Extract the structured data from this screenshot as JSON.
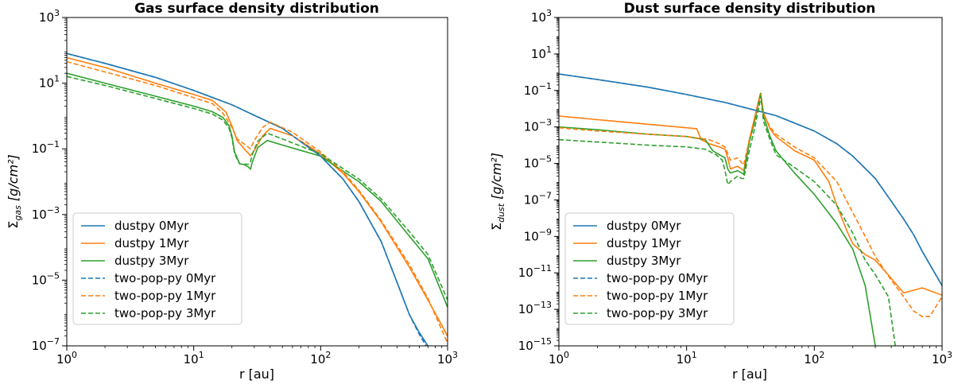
{
  "chart_data": [
    {
      "type": "line",
      "title": "Gas surface density distribution",
      "xlabel": "r [au]",
      "ylabel_main": "Σ",
      "ylabel_sub": "gas",
      "ylabel_unit": "[g/cm²]",
      "xscale": "log",
      "yscale": "log",
      "xlim": [
        1,
        1000
      ],
      "ylim": [
        1e-07,
        1000
      ],
      "xticks": [
        {
          "value": 1,
          "label": "10",
          "exp": "0"
        },
        {
          "value": 10,
          "label": "10",
          "exp": "1"
        },
        {
          "value": 100,
          "label": "10",
          "exp": "2"
        },
        {
          "value": 1000,
          "label": "10",
          "exp": "3"
        }
      ],
      "yticks": [
        {
          "value": 1e-07,
          "label": "10",
          "exp": "−7"
        },
        {
          "value": 1e-05,
          "label": "10",
          "exp": "−5"
        },
        {
          "value": 0.001,
          "label": "10",
          "exp": "−3"
        },
        {
          "value": 0.1,
          "label": "10",
          "exp": "−1"
        },
        {
          "value": 10,
          "label": "10",
          "exp": "1"
        },
        {
          "value": 1000,
          "label": "10",
          "exp": "3"
        }
      ],
      "legend_position": "lower-left",
      "series": [
        {
          "name": "dustpy 0Myr",
          "color": "#1f77b4",
          "dash": "solid",
          "x": [
            1,
            2,
            5,
            10,
            20,
            30,
            50,
            100,
            150,
            200,
            300,
            400,
            500,
            600,
            700
          ],
          "y": [
            80,
            40,
            15,
            6,
            2.2,
            1.05,
            0.42,
            0.06,
            0.012,
            0.0025,
            0.00015,
            8.5e-06,
            9e-07,
            2.5e-07,
            1e-07
          ]
        },
        {
          "name": "dustpy 1Myr",
          "color": "#ff7f0e",
          "dash": "solid",
          "x": [
            1,
            2,
            5,
            10,
            14,
            18,
            20,
            22,
            25,
            28,
            30,
            35,
            40,
            60,
            100,
            150,
            200,
            300,
            500,
            700,
            1000
          ],
          "y": [
            60,
            30,
            10,
            4.5,
            3.0,
            1.3,
            0.5,
            0.18,
            0.1,
            0.062,
            0.09,
            0.25,
            0.42,
            0.25,
            0.07,
            0.018,
            0.005,
            0.0006,
            2.5e-05,
            2.5e-06,
            2e-07
          ]
        },
        {
          "name": "dustpy 3Myr",
          "color": "#2ca02c",
          "dash": "solid",
          "x": [
            1,
            2,
            5,
            10,
            14,
            17,
            19,
            20,
            21,
            23,
            25,
            27,
            28,
            29,
            32,
            38,
            50,
            100,
            200,
            300,
            500,
            700,
            1000
          ],
          "y": [
            20,
            10,
            4,
            2.0,
            1.35,
            0.9,
            0.5,
            0.25,
            0.08,
            0.035,
            0.033,
            0.028,
            0.024,
            0.04,
            0.11,
            0.18,
            0.13,
            0.06,
            0.01,
            0.0025,
            0.00022,
            4.5e-05,
            1.5e-06
          ]
        },
        {
          "name": "two-pop-py 0Myr",
          "color": "#1f77b4",
          "dash": "dashed",
          "x": [
            1,
            2,
            5,
            10,
            20,
            30,
            50,
            100,
            150,
            200,
            300,
            400,
            500,
            600,
            700
          ],
          "y": [
            80,
            40,
            15,
            6,
            2.2,
            1.05,
            0.42,
            0.06,
            0.012,
            0.0025,
            0.00015,
            8.5e-06,
            9e-07,
            2.2e-07,
            8e-08
          ]
        },
        {
          "name": "two-pop-py 1Myr",
          "color": "#ff7f0e",
          "dash": "dashed",
          "x": [
            1,
            2,
            5,
            10,
            14,
            17,
            20,
            22,
            25,
            28,
            30,
            35,
            40,
            60,
            100,
            150,
            200,
            300,
            500,
            700,
            1000
          ],
          "y": [
            45,
            22,
            8.5,
            3.6,
            2.4,
            1.2,
            0.45,
            0.2,
            0.14,
            0.1,
            0.18,
            0.45,
            0.65,
            0.32,
            0.08,
            0.02,
            0.0055,
            0.00065,
            3e-05,
            2.8e-06,
            1.2e-07
          ]
        },
        {
          "name": "two-pop-py 3Myr",
          "color": "#2ca02c",
          "dash": "dashed",
          "x": [
            1,
            2,
            5,
            10,
            14,
            17,
            19,
            20,
            21,
            23,
            25,
            27,
            28,
            29,
            32,
            38,
            50,
            100,
            200,
            300,
            500,
            700,
            1000
          ],
          "y": [
            16,
            8.5,
            3.4,
            1.7,
            1.15,
            0.75,
            0.42,
            0.22,
            0.07,
            0.035,
            0.034,
            0.034,
            0.04,
            0.07,
            0.17,
            0.3,
            0.2,
            0.07,
            0.012,
            0.003,
            0.0003,
            6e-05,
            2.5e-06
          ]
        }
      ]
    },
    {
      "type": "line",
      "title": "Dust surface density distribution",
      "xlabel": "r [au]",
      "ylabel_main": "Σ",
      "ylabel_sub": "dust",
      "ylabel_unit": "[g/cm²]",
      "xscale": "log",
      "yscale": "log",
      "xlim": [
        1,
        1000
      ],
      "ylim": [
        1e-15,
        1000
      ],
      "xticks": [
        {
          "value": 1,
          "label": "10",
          "exp": "0"
        },
        {
          "value": 10,
          "label": "10",
          "exp": "1"
        },
        {
          "value": 100,
          "label": "10",
          "exp": "2"
        },
        {
          "value": 1000,
          "label": "10",
          "exp": "3"
        }
      ],
      "yticks": [
        {
          "value": 1e-15,
          "label": "10",
          "exp": "−15"
        },
        {
          "value": 1e-13,
          "label": "10",
          "exp": "−13"
        },
        {
          "value": 1e-11,
          "label": "10",
          "exp": "−11"
        },
        {
          "value": 1e-09,
          "label": "10",
          "exp": "−9"
        },
        {
          "value": 1e-07,
          "label": "10",
          "exp": "−7"
        },
        {
          "value": 1e-05,
          "label": "10",
          "exp": "−5"
        },
        {
          "value": 0.001,
          "label": "10",
          "exp": "−3"
        },
        {
          "value": 0.1,
          "label": "10",
          "exp": "−1"
        },
        {
          "value": 10,
          "label": "10",
          "exp": "1"
        },
        {
          "value": 1000,
          "label": "10",
          "exp": "3"
        }
      ],
      "legend_position": "lower-left",
      "series": [
        {
          "name": "dustpy 0Myr",
          "color": "#1f77b4",
          "dash": "solid",
          "x": [
            1,
            2,
            5,
            10,
            20,
            30,
            50,
            100,
            150,
            200,
            300,
            400,
            500,
            600,
            700,
            800,
            1000
          ],
          "y": [
            0.8,
            0.4,
            0.15,
            0.06,
            0.022,
            0.0105,
            0.0042,
            0.0006,
            0.00012,
            2.5e-05,
            1.5e-06,
            8.5e-08,
            9e-09,
            1.2e-09,
            1.5e-10,
            3e-11,
            2e-12
          ]
        },
        {
          "name": "dustpy 1Myr",
          "color": "#ff7f0e",
          "dash": "solid",
          "x": [
            1,
            2,
            5,
            10,
            12,
            13,
            15,
            18,
            20,
            21,
            22,
            25,
            27,
            28,
            31,
            34,
            37,
            38,
            40,
            45,
            50,
            70,
            100,
            130,
            150,
            180,
            200,
            250,
            300,
            400,
            500,
            700,
            1000
          ],
          "y": [
            0.004,
            0.0025,
            0.0014,
            0.0009,
            0.0008,
            0.0002,
            0.00012,
            8e-05,
            6e-05,
            2e-05,
            5e-06,
            7e-06,
            5e-06,
            4e-06,
            0.0002,
            0.003,
            0.04,
            0.07,
            0.006,
            0.0008,
            0.0003,
            5e-05,
            1.5e-05,
            1e-06,
            5e-08,
            2e-09,
            4e-10,
            1e-10,
            5e-11,
            5e-12,
            8e-13,
            1.5e-12,
            6e-13
          ]
        },
        {
          "name": "dustpy 3Myr",
          "color": "#2ca02c",
          "dash": "solid",
          "x": [
            1,
            2,
            5,
            10,
            14,
            16,
            18,
            20,
            21,
            22,
            25,
            27,
            28,
            31,
            34,
            37,
            38,
            40,
            45,
            50,
            70,
            100,
            150,
            200,
            250,
            300
          ],
          "y": [
            0.001,
            0.0007,
            0.0004,
            0.0003,
            0.0002,
            5e-05,
            3e-05,
            2e-05,
            5e-06,
            3e-06,
            4e-06,
            3e-06,
            2.5e-06,
            0.00015,
            0.002,
            0.03,
            0.07,
            0.004,
            0.0003,
            5e-05,
            3e-06,
            2e-07,
            5e-09,
            2e-10,
            2e-12,
            1e-15
          ]
        },
        {
          "name": "two-pop-py 0Myr",
          "color": "#1f77b4",
          "dash": "dashed",
          "x": [
            1,
            2,
            5,
            10,
            20,
            30,
            50,
            100,
            150,
            200,
            300,
            400,
            500,
            600,
            700,
            800,
            1000
          ],
          "y": [
            0.8,
            0.4,
            0.15,
            0.06,
            0.022,
            0.0105,
            0.0042,
            0.0006,
            0.00012,
            2.5e-05,
            1.5e-06,
            8.5e-08,
            9e-09,
            1.2e-09,
            1.5e-10,
            3e-11,
            2e-12
          ]
        },
        {
          "name": "two-pop-py 1Myr",
          "color": "#ff7f0e",
          "dash": "dashed",
          "x": [
            1,
            2,
            5,
            10,
            15,
            18,
            20,
            22,
            25,
            28,
            31,
            34,
            37,
            38,
            40,
            45,
            50,
            70,
            100,
            150,
            200,
            250,
            300,
            400,
            500,
            600,
            700,
            800,
            1000
          ],
          "y": [
            0.0009,
            0.0006,
            0.0004,
            0.0003,
            0.0002,
            0.00012,
            8e-05,
            1.5e-05,
            2e-05,
            8e-06,
            0.0002,
            0.003,
            0.03,
            0.06,
            0.005,
            0.001,
            0.0004,
            8e-05,
            2e-05,
            1e-06,
            2e-08,
            1e-09,
            8e-11,
            4e-12,
            5e-13,
            8e-14,
            4e-14,
            4e-14,
            5e-13
          ]
        },
        {
          "name": "two-pop-py 3Myr",
          "color": "#2ca02c",
          "dash": "dashed",
          "x": [
            1,
            2,
            5,
            10,
            14,
            17,
            19,
            20,
            21,
            22,
            25,
            27,
            28,
            31,
            34,
            37,
            38,
            40,
            45,
            50,
            70,
            100,
            150,
            200,
            250,
            300,
            380,
            430
          ],
          "y": [
            0.0002,
            0.00015,
            0.0001,
            8e-05,
            6e-05,
            3e-05,
            1.5e-05,
            4e-06,
            7e-07,
            1e-06,
            2e-06,
            1.5e-06,
            1.5e-06,
            5e-05,
            0.0008,
            0.015,
            0.05,
            0.002,
            0.0002,
            3e-05,
            6e-06,
            1e-06,
            5e-08,
            1.5e-09,
            5e-11,
            8e-12,
            5e-13,
            1e-15
          ]
        }
      ]
    }
  ]
}
